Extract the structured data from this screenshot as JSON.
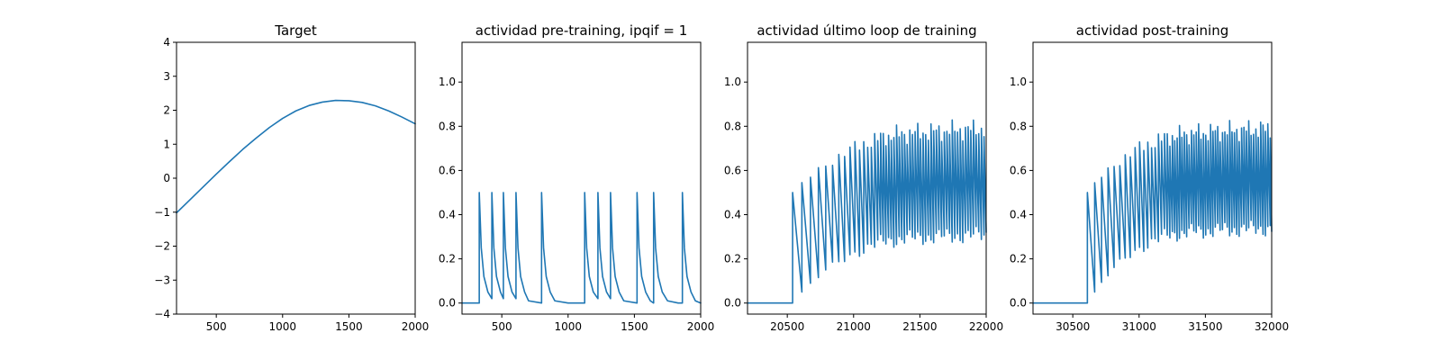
{
  "figure": {
    "background": "#ffffff",
    "line_color": "#1f77b4"
  },
  "chart_data": [
    {
      "type": "line",
      "title": "Target",
      "xlabel": "",
      "ylabel": "",
      "xlim": [
        200,
        2000
      ],
      "ylim": [
        -4,
        4
      ],
      "xticks": [
        500,
        1000,
        1500,
        2000
      ],
      "xtick_labels": [
        "500",
        "1000",
        "1500",
        "2000"
      ],
      "yticks": [
        -4,
        -3,
        -2,
        -1,
        0,
        1,
        2,
        3,
        4
      ],
      "ytick_labels": [
        "−4",
        "−3",
        "−2",
        "−1",
        "0",
        "1",
        "2",
        "3",
        "4"
      ],
      "grid": false,
      "series": [
        {
          "x": [
            200,
            300,
            400,
            500,
            600,
            700,
            800,
            900,
            1000,
            1100,
            1200,
            1300,
            1400,
            1500,
            1600,
            1700,
            1800,
            1900,
            2000
          ],
          "y": [
            -1.02,
            -0.64,
            -0.26,
            0.12,
            0.49,
            0.85,
            1.18,
            1.49,
            1.76,
            1.98,
            2.14,
            2.24,
            2.29,
            2.28,
            2.23,
            2.13,
            1.98,
            1.8,
            1.6
          ]
        }
      ]
    },
    {
      "type": "line",
      "title": "actividad pre-training, ipqif = 1",
      "xlabel": "",
      "ylabel": "",
      "xlim": [
        200,
        2000
      ],
      "ylim": [
        -0.05,
        1.18
      ],
      "xticks": [
        500,
        1000,
        1500,
        2000
      ],
      "xtick_labels": [
        "500",
        "1000",
        "1500",
        "2000"
      ],
      "yticks": [
        0.0,
        0.2,
        0.4,
        0.6,
        0.8,
        1.0
      ],
      "ytick_labels": [
        "0.0",
        "0.2",
        "0.4",
        "0.6",
        "0.8",
        "1.0"
      ],
      "grid": false,
      "series": [
        {
          "x": [
            200,
            330,
            330,
            345,
            365,
            395,
            425,
            425,
            440,
            460,
            490,
            512,
            512,
            527,
            547,
            577,
            607,
            607,
            622,
            642,
            672,
            702,
            800,
            800,
            815,
            835,
            865,
            900,
            1000,
            1125,
            1125,
            1140,
            1160,
            1190,
            1225,
            1225,
            1240,
            1260,
            1290,
            1320,
            1320,
            1335,
            1355,
            1385,
            1420,
            1520,
            1520,
            1535,
            1555,
            1585,
            1620,
            1645,
            1645,
            1660,
            1680,
            1710,
            1750,
            1830,
            1862,
            1862,
            1877,
            1897,
            1927,
            1960,
            2000
          ],
          "y": [
            0.0,
            0.0,
            0.5,
            0.25,
            0.12,
            0.05,
            0.02,
            0.5,
            0.25,
            0.12,
            0.05,
            0.02,
            0.5,
            0.25,
            0.12,
            0.05,
            0.02,
            0.5,
            0.25,
            0.12,
            0.05,
            0.01,
            0.0,
            0.5,
            0.25,
            0.12,
            0.05,
            0.01,
            0.0,
            0.0,
            0.5,
            0.25,
            0.12,
            0.05,
            0.02,
            0.5,
            0.25,
            0.12,
            0.05,
            0.02,
            0.5,
            0.25,
            0.12,
            0.05,
            0.01,
            0.0,
            0.5,
            0.25,
            0.12,
            0.05,
            0.01,
            0.0,
            0.5,
            0.25,
            0.12,
            0.05,
            0.01,
            0.0,
            0.0,
            0.5,
            0.25,
            0.12,
            0.05,
            0.01,
            0.0
          ]
        }
      ]
    },
    {
      "type": "line",
      "title": "actividad último loop de training",
      "xlabel": "",
      "ylabel": "",
      "xlim": [
        20200,
        22000
      ],
      "ylim": [
        -0.05,
        1.18
      ],
      "xticks": [
        20500,
        21000,
        21500,
        22000
      ],
      "xtick_labels": [
        "20500",
        "21000",
        "21500",
        "22000"
      ],
      "yticks": [
        0.0,
        0.2,
        0.4,
        0.6,
        0.8,
        1.0
      ],
      "ytick_labels": [
        "0.0",
        "0.2",
        "0.4",
        "0.6",
        "0.8",
        "1.0"
      ],
      "grid": false,
      "oscillation": {
        "baseline": 0.0,
        "onset_x": 20540,
        "end_x": 22000,
        "first_period": 70,
        "last_period": 20,
        "first_peak": 0.5,
        "peak_plateau": 0.74,
        "peak_rise": 0.012,
        "peak_jitter": 0.05,
        "first_trough": 0.05,
        "trough_plateau": 0.28,
        "trough_rise": 0.03,
        "trough_jitter": 0.04
      }
    },
    {
      "type": "line",
      "title": "actividad post-training",
      "xlabel": "",
      "ylabel": "",
      "xlim": [
        30200,
        32000
      ],
      "ylim": [
        -0.05,
        1.18
      ],
      "xticks": [
        30500,
        31000,
        31500,
        32000
      ],
      "xtick_labels": [
        "30500",
        "31000",
        "31500",
        "32000"
      ],
      "yticks": [
        0.0,
        0.2,
        0.4,
        0.6,
        0.8,
        1.0
      ],
      "ytick_labels": [
        "0.0",
        "0.2",
        "0.4",
        "0.6",
        "0.8",
        "1.0"
      ],
      "grid": false,
      "oscillation": {
        "baseline": 0.0,
        "onset_x": 30610,
        "end_x": 32000,
        "first_period": 55,
        "last_period": 18,
        "first_peak": 0.5,
        "peak_plateau": 0.74,
        "peak_rise": 0.012,
        "peak_jitter": 0.05,
        "first_trough": 0.05,
        "trough_plateau": 0.31,
        "trough_rise": 0.03,
        "trough_jitter": 0.04
      }
    }
  ]
}
